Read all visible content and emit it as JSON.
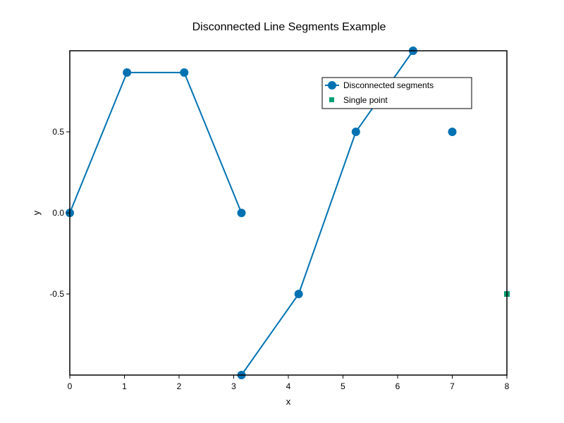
{
  "chart_data": {
    "type": "line",
    "title": "Disconnected Line Segments Example",
    "xlabel": "x",
    "ylabel": "y",
    "xlim": [
      0,
      8
    ],
    "ylim": [
      -1,
      1
    ],
    "xticks": [
      0,
      1,
      2,
      3,
      4,
      5,
      6,
      7,
      8
    ],
    "yticks": [
      -0.5,
      0.0,
      0.5
    ],
    "ytick_labels": [
      "-0.5",
      "0.0",
      "0.5"
    ],
    "grid": false,
    "legend_position": "upper right (inside, offset)",
    "series": [
      {
        "name": "Disconnected segments",
        "color": "#0072b2",
        "marker": "circle",
        "line": true,
        "segments": [
          [
            [
              0,
              0
            ],
            [
              1.047,
              0.866
            ],
            [
              2.094,
              0.866
            ],
            [
              3.142,
              0.0
            ]
          ],
          [
            [
              3.142,
              -1.0
            ],
            [
              4.189,
              -0.5
            ],
            [
              5.236,
              0.5
            ],
            [
              6.283,
              1.0
            ]
          ],
          [
            [
              7.0,
              0.5
            ]
          ]
        ]
      },
      {
        "name": "Single point",
        "color": "#009e73",
        "marker": "square",
        "line": false,
        "segments": [
          [
            [
              8.0,
              -0.5
            ]
          ]
        ]
      }
    ]
  },
  "legend": {
    "items": [
      {
        "label": "Disconnected segments"
      },
      {
        "label": "Single point"
      }
    ]
  }
}
